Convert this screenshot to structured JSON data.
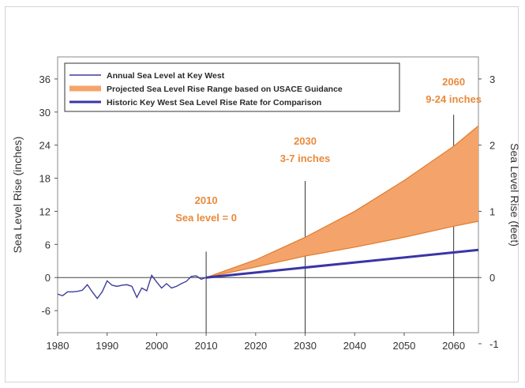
{
  "chart_data": {
    "type": "line",
    "xlim": [
      1980,
      2065
    ],
    "ylim_inches": [
      -10,
      40
    ],
    "ylim_feet": [
      -0.8333,
      3.3333
    ],
    "x_ticks": [
      1980,
      1990,
      2000,
      2010,
      2020,
      2030,
      2040,
      2050,
      2060
    ],
    "y_ticks_left": [
      -6,
      0,
      6,
      12,
      18,
      24,
      30,
      36
    ],
    "y_ticks_right": [
      -1,
      0,
      1,
      2,
      3
    ],
    "ylabel_left": "Sea Level Rise (inches)",
    "ylabel_right": "Sea Level Rise (feet)",
    "legend_position": "top-left",
    "colors": {
      "annual": "#3d3d9e",
      "projected_fill": "#f4a46a",
      "projected_edge": "#e07b2e",
      "historic": "#3a35a6",
      "annotation": "#e98a3c"
    },
    "series": [
      {
        "name": "Annual Sea Level at Key West",
        "x": [
          1980,
          1981,
          1982,
          1983,
          1984,
          1985,
          1986,
          1987,
          1988,
          1989,
          1990,
          1991,
          1992,
          1993,
          1994,
          1995,
          1996,
          1997,
          1998,
          1999,
          2000,
          2001,
          2002,
          2003,
          2004,
          2005,
          2006,
          2007,
          2008,
          2009,
          2010
        ],
        "y": [
          -3.0,
          -3.3,
          -2.6,
          -2.6,
          -2.5,
          -2.3,
          -1.3,
          -2.6,
          -3.8,
          -2.6,
          -0.6,
          -1.4,
          -1.6,
          -1.4,
          -1.3,
          -1.6,
          -3.6,
          -1.9,
          -2.4,
          0.4,
          -0.8,
          -1.9,
          -1.1,
          -1.9,
          -1.6,
          -1.1,
          -0.7,
          0.2,
          0.3,
          -0.3,
          0.0
        ]
      },
      {
        "name": "Projected Sea Level Rise Range based on USACE Guidance",
        "x": [
          2010,
          2020,
          2030,
          2040,
          2050,
          2060,
          2065
        ],
        "y_low": [
          0,
          1.9,
          3.9,
          5.5,
          7.3,
          9.3,
          10.2
        ],
        "y_high": [
          0,
          3.2,
          7.3,
          12.0,
          17.6,
          23.8,
          27.5
        ]
      },
      {
        "name": "Historic Key West Sea Level Rise Rate for Comparison",
        "x": [
          2010,
          2065
        ],
        "y": [
          0,
          5.0
        ]
      }
    ],
    "annotations": [
      {
        "x": 2010,
        "line1": "2010",
        "line2": "Sea level = 0"
      },
      {
        "x": 2030,
        "line1": "2030",
        "line2": "3-7 inches"
      },
      {
        "x": 2060,
        "line1": "2060",
        "line2": "9-24 inches"
      }
    ]
  }
}
